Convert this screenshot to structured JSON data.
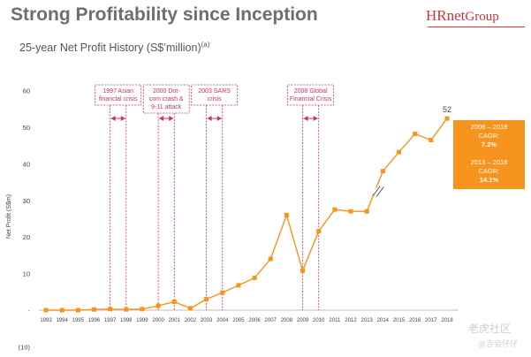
{
  "header": {
    "title": "Strong Profitability since Inception",
    "subtitle": "25-year Net Profit History (S$’million)",
    "subtitle_note": "(a)",
    "logo_main": "HRnet",
    "logo_sub": "Group"
  },
  "colors": {
    "accent": "#f7941d",
    "annotation": "#c9316f",
    "title": "#6d6e70",
    "logo": "#c9363e"
  },
  "chart_data": {
    "type": "line",
    "ylabel": "Net Profit (S$m)",
    "ylim": [
      -10,
      60
    ],
    "yticks": [
      -10,
      0,
      10,
      20,
      30,
      40,
      50,
      60
    ],
    "ytick_labels": [
      "(10)",
      "-",
      "10",
      "20",
      "30",
      "40",
      "50",
      "60"
    ],
    "x": [
      "1993",
      "1994",
      "1995",
      "1996",
      "1997",
      "1998",
      "1999",
      "2000",
      "2001",
      "2002",
      "2003",
      "2004",
      "2005",
      "2006",
      "2007",
      "2008",
      "2009",
      "2010",
      "2011",
      "2012",
      "2013",
      "2014",
      "2015",
      "2016",
      "2017",
      "2018"
    ],
    "values": [
      0,
      0,
      0,
      0.2,
      0.3,
      0.2,
      0.3,
      1.2,
      2.3,
      0.5,
      3.0,
      4.8,
      6.8,
      8.8,
      14,
      26,
      10.8,
      21.6,
      27.5,
      27,
      27,
      38,
      43.2,
      48.2,
      46.5,
      52.4
    ],
    "end_label": "52",
    "grid": false,
    "axis_break_between": [
      "2013",
      "2014"
    ],
    "annotations": [
      {
        "label": [
          "1997 Asian",
          "financial crisis"
        ],
        "from": "1997",
        "to": "1998"
      },
      {
        "label": [
          "2000 Dot-",
          "com crash &",
          "9-11 attack"
        ],
        "from": "2000",
        "to": "2001"
      },
      {
        "label": [
          "2003 SARS",
          "crisis"
        ],
        "from": "2003",
        "to": "2004"
      },
      {
        "label": [
          "2008 Global",
          "Financial Crisis"
        ],
        "from": "2009",
        "to": "2010"
      }
    ],
    "cagr_boxes": [
      {
        "period": "2008 – 2018",
        "label": "CAGR:",
        "value": "7.2%"
      },
      {
        "period": "2013 – 2018",
        "label": "CAGR:",
        "value": "14.1%"
      }
    ]
  },
  "watermark": {
    "line1": "老虎社区",
    "line2": "@吉会仔仔"
  }
}
